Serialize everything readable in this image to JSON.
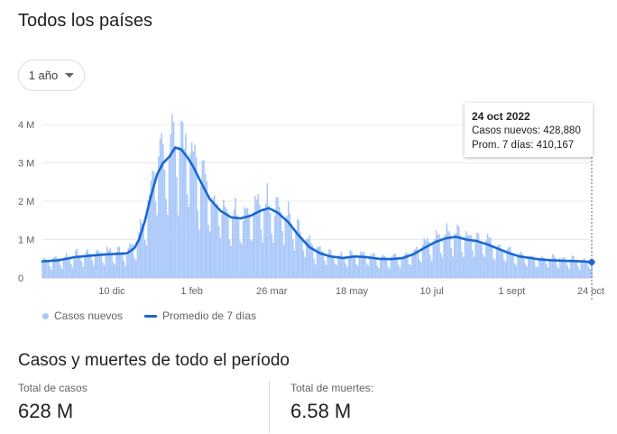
{
  "title": "Todos los países",
  "period": {
    "label": "1 año"
  },
  "colors": {
    "bars": "#a8c7fa",
    "line": "#1967d2",
    "grid": "#e8eaed"
  },
  "chart_data": {
    "type": "bar",
    "ylim": [
      0,
      4000000
    ],
    "y_ticks": [
      {
        "value": 0,
        "label": "0"
      },
      {
        "value": 1000000,
        "label": "1 M"
      },
      {
        "value": 2000000,
        "label": "2 M"
      },
      {
        "value": 3000000,
        "label": "3 M"
      },
      {
        "value": 4000000,
        "label": "4 M"
      }
    ],
    "x_ticks": [
      {
        "date": "2021-12-10",
        "label": "10 dic"
      },
      {
        "date": "2022-02-01",
        "label": "1 feb"
      },
      {
        "date": "2022-03-26",
        "label": "26 mar"
      },
      {
        "date": "2022-05-18",
        "label": "18 may"
      },
      {
        "date": "2022-07-10",
        "label": "10 jul"
      },
      {
        "date": "2022-09-01",
        "label": "1 sept"
      },
      {
        "date": "2022-10-24",
        "label": "24 oct"
      }
    ],
    "x_range": [
      "2021-10-25",
      "2022-10-24"
    ],
    "series": [
      {
        "name": "Casos nuevos",
        "kind": "bar"
      },
      {
        "name": "Promedio de 7 días",
        "kind": "line"
      }
    ],
    "avg_points": [
      [
        "2021-10-25",
        430000
      ],
      [
        "2021-11-05",
        460000
      ],
      [
        "2021-11-15",
        540000
      ],
      [
        "2021-11-25",
        580000
      ],
      [
        "2021-12-05",
        610000
      ],
      [
        "2021-12-15",
        630000
      ],
      [
        "2021-12-20",
        640000
      ],
      [
        "2021-12-25",
        780000
      ],
      [
        "2021-12-28",
        1000000
      ],
      [
        "2022-01-01",
        1500000
      ],
      [
        "2022-01-05",
        2150000
      ],
      [
        "2022-01-09",
        2700000
      ],
      [
        "2022-01-13",
        3000000
      ],
      [
        "2022-01-17",
        3150000
      ],
      [
        "2022-01-21",
        3400000
      ],
      [
        "2022-01-25",
        3350000
      ],
      [
        "2022-01-29",
        3150000
      ],
      [
        "2022-02-02",
        2900000
      ],
      [
        "2022-02-07",
        2500000
      ],
      [
        "2022-02-13",
        2050000
      ],
      [
        "2022-02-20",
        1750000
      ],
      [
        "2022-02-27",
        1580000
      ],
      [
        "2022-03-05",
        1550000
      ],
      [
        "2022-03-12",
        1620000
      ],
      [
        "2022-03-19",
        1760000
      ],
      [
        "2022-03-24",
        1820000
      ],
      [
        "2022-03-30",
        1700000
      ],
      [
        "2022-04-06",
        1450000
      ],
      [
        "2022-04-13",
        1100000
      ],
      [
        "2022-04-20",
        800000
      ],
      [
        "2022-04-27",
        640000
      ],
      [
        "2022-05-04",
        560000
      ],
      [
        "2022-05-12",
        520000
      ],
      [
        "2022-05-20",
        560000
      ],
      [
        "2022-05-28",
        540000
      ],
      [
        "2022-06-05",
        500000
      ],
      [
        "2022-06-13",
        490000
      ],
      [
        "2022-06-21",
        520000
      ],
      [
        "2022-06-28",
        620000
      ],
      [
        "2022-07-05",
        780000
      ],
      [
        "2022-07-12",
        930000
      ],
      [
        "2022-07-19",
        1030000
      ],
      [
        "2022-07-26",
        1070000
      ],
      [
        "2022-08-02",
        1000000
      ],
      [
        "2022-08-09",
        960000
      ],
      [
        "2022-08-16",
        870000
      ],
      [
        "2022-08-23",
        760000
      ],
      [
        "2022-08-30",
        650000
      ],
      [
        "2022-09-06",
        560000
      ],
      [
        "2022-09-13",
        520000
      ],
      [
        "2022-09-20",
        480000
      ],
      [
        "2022-09-27",
        460000
      ],
      [
        "2022-10-04",
        450000
      ],
      [
        "2022-10-11",
        440000
      ],
      [
        "2022-10-18",
        430000
      ],
      [
        "2022-10-24",
        410167
      ]
    ],
    "highlight": {
      "date_label": "24 oct 2022",
      "cases_label": "Casos nuevos: 428,880",
      "avg_label": "Prom. 7 días: 410,167",
      "cases": 428880,
      "avg": 410167
    }
  },
  "legend": {
    "bars": "Casos nuevos",
    "line": "Promedio de 7 días"
  },
  "summary": {
    "heading": "Casos y muertes de todo el período",
    "cases_label": "Total de casos",
    "cases_value": "628 M",
    "deaths_label": "Total de muertes:",
    "deaths_value": "6.58 M"
  }
}
